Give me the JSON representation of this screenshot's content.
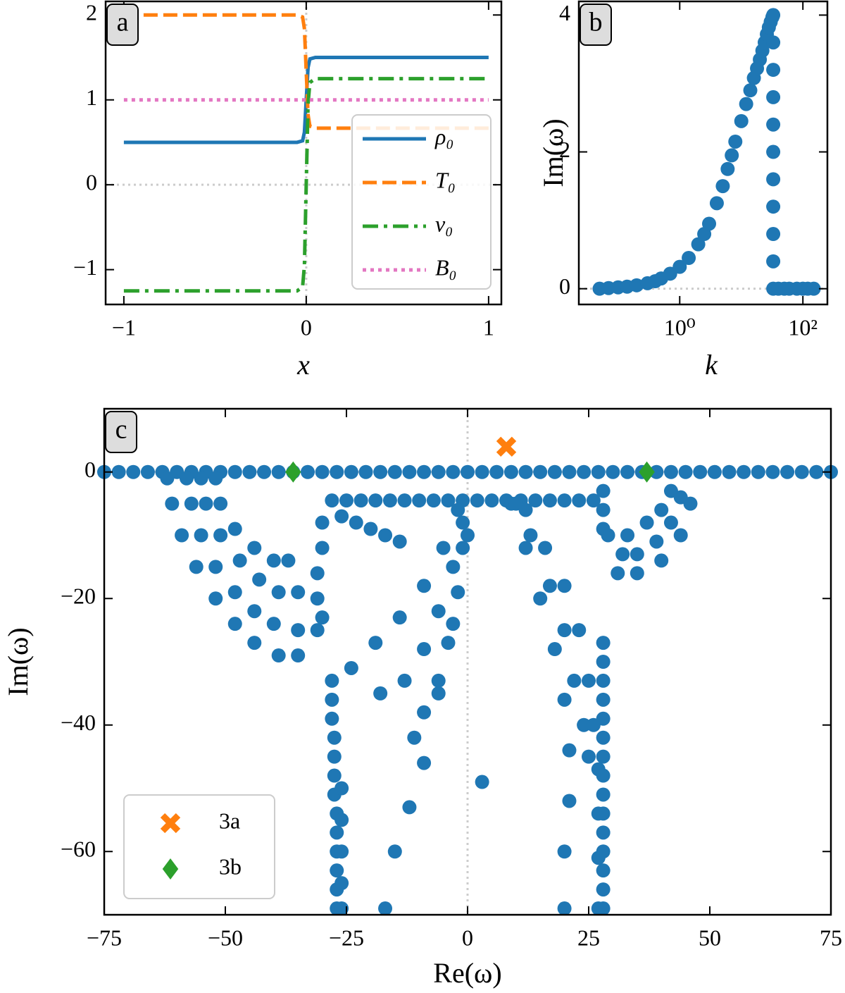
{
  "chart_data": [
    {
      "type": "line",
      "panel_label": "a",
      "xlabel": "x",
      "x": [
        -1,
        -0.1,
        -0.05,
        -0.02,
        -0.01,
        0,
        0.01,
        0.02,
        0.05,
        0.1,
        1
      ],
      "series": [
        {
          "name": "ρ₀",
          "color": "#1f77b4",
          "linestyle": "solid",
          "values": [
            0.5,
            0.5,
            0.5,
            0.518,
            0.619,
            1,
            1.381,
            1.482,
            1.5,
            1.5,
            1.5
          ]
        },
        {
          "name": "T₀",
          "color": "#ff7f0e",
          "linestyle": "dashed",
          "values": [
            2,
            2,
            2,
            1.976,
            1.841,
            1.333,
            0.825,
            0.69,
            0.667,
            0.667,
            0.667
          ]
        },
        {
          "name": "v₀",
          "color": "#2ca02c",
          "linestyle": "dashdot",
          "values": [
            -1.25,
            -1.25,
            -1.25,
            -1.205,
            -0.952,
            0,
            0.952,
            1.205,
            1.25,
            1.25,
            1.25
          ]
        },
        {
          "name": "B₀",
          "color": "#e377c2",
          "linestyle": "dotted",
          "values": [
            1,
            1,
            1,
            1,
            1,
            1,
            1,
            1,
            1,
            1,
            1
          ]
        }
      ],
      "xlim": [
        -1.1,
        1.07
      ],
      "ylim": [
        -1.41,
        2.16
      ],
      "xticks": [
        {
          "value": -1,
          "label": "−1"
        },
        0,
        1
      ],
      "yticks": [
        {
          "value": -1,
          "label": "−1"
        },
        0,
        1,
        2
      ],
      "zero_lines": [
        "x",
        "y"
      ],
      "legend": "lower right"
    },
    {
      "type": "scatter",
      "panel_label": "b",
      "xlabel": "k",
      "ylabel": "Im(ω)",
      "xlog": true,
      "series": [
        {
          "color": "#1f77b4",
          "marker": "o",
          "x": [
            0.05,
            0.07,
            0.1,
            0.14,
            0.2,
            0.3,
            0.4,
            0.5,
            0.7,
            1,
            1.4,
            2,
            2.5,
            3,
            4,
            5,
            6,
            7,
            8,
            10,
            12,
            14,
            16,
            18,
            20,
            22,
            24,
            26,
            28,
            30,
            32,
            33,
            33,
            33,
            33,
            33,
            33,
            33,
            33,
            33,
            33,
            33,
            40,
            50,
            60,
            80,
            100,
            120,
            150
          ],
          "y": [
            0,
            0.01,
            0.02,
            0.03,
            0.05,
            0.08,
            0.11,
            0.15,
            0.22,
            0.32,
            0.45,
            0.65,
            0.8,
            0.95,
            1.25,
            1.5,
            1.75,
            1.95,
            2.15,
            2.45,
            2.7,
            2.9,
            3.08,
            3.22,
            3.35,
            3.48,
            3.6,
            3.72,
            3.82,
            3.9,
            3.97,
            4.0,
            3.6,
            3.2,
            2.8,
            2.4,
            2.0,
            1.6,
            1.2,
            0.8,
            0.4,
            0,
            0,
            0,
            0,
            0,
            0,
            0,
            0
          ]
        }
      ],
      "xlim": [
        0.023,
        250
      ],
      "ylim": [
        -0.23,
        4.2
      ],
      "xticks": [
        {
          "value": 1,
          "label": "10⁰"
        },
        {
          "value": 100,
          "label": "10²"
        }
      ],
      "yticks": [
        0,
        2,
        4
      ],
      "zero_lines": [
        "y"
      ]
    },
    {
      "type": "scatter",
      "panel_label": "c",
      "xlabel": "Re(ω)",
      "ylabel": "Im(ω)",
      "series": [
        {
          "color": "#1f77b4",
          "marker": "o",
          "x": [
            -75,
            -72,
            -69,
            -66,
            -63,
            -60,
            -57,
            -54,
            -51,
            -48,
            -45,
            -42,
            -39,
            -36,
            -33,
            -30,
            -27,
            -24,
            -21,
            -18,
            -15,
            -12,
            -9,
            -6,
            -3,
            0,
            3,
            6,
            9,
            12,
            15,
            18,
            21,
            24,
            27,
            30,
            33,
            36,
            39,
            42,
            45,
            48,
            51,
            54,
            57,
            60,
            63,
            66,
            69,
            72,
            75,
            -28,
            -25,
            -22,
            -19,
            -16,
            -13,
            -10,
            -7,
            -4,
            -1,
            2,
            5,
            8,
            11,
            14,
            17,
            20,
            23,
            26,
            -62,
            -61,
            -59,
            -56,
            -52,
            -48,
            -44,
            -39,
            -35,
            -58,
            -57,
            -55,
            -52,
            -48,
            -44,
            -40,
            -35,
            -31,
            -55,
            -54,
            -51,
            -47,
            -43,
            -39,
            -35,
            -52,
            -51,
            -48,
            -44,
            -40,
            -37,
            -30,
            -30,
            -31,
            -31,
            -30,
            -2,
            -5,
            -9,
            -14,
            -19,
            -24,
            -1,
            -3,
            -6,
            -9,
            -13,
            -18,
            0,
            -2,
            -4,
            -6,
            -9,
            -11,
            -1,
            -3,
            -6,
            -9,
            -12,
            -15,
            -17,
            -26,
            -23,
            -20,
            -17,
            -14,
            -28,
            -28,
            -28,
            -27.5,
            -27.5,
            -27.5,
            -27.5,
            -27,
            -27,
            -27,
            -27,
            -27,
            -27,
            -26,
            -26,
            -26,
            -26,
            -26,
            9,
            12,
            15,
            18,
            20,
            21,
            21,
            20,
            20,
            10,
            13,
            17,
            20,
            22,
            24,
            25,
            12,
            16,
            20,
            23,
            25,
            26,
            27,
            27,
            27,
            27,
            28,
            28,
            28,
            28,
            28,
            28,
            28,
            28,
            28,
            28,
            28,
            28,
            28,
            28,
            28,
            3,
            46,
            44,
            40,
            35,
            31,
            44,
            42,
            39,
            35,
            32,
            42,
            40,
            37,
            33,
            29,
            28,
            28,
            28
          ],
          "y": [
            0,
            0,
            0,
            0,
            0,
            0,
            0,
            0,
            0,
            0,
            0,
            0,
            0,
            0,
            0,
            0,
            0,
            0,
            0,
            0,
            0,
            0,
            0,
            0,
            0,
            0,
            0,
            0,
            0,
            0,
            0,
            0,
            0,
            0,
            0,
            0,
            0,
            0,
            0,
            0,
            0,
            0,
            0,
            0,
            0,
            0,
            0,
            0,
            0,
            0,
            0,
            -4.5,
            -4.5,
            -4.5,
            -4.5,
            -4.5,
            -4.5,
            -4.5,
            -4.5,
            -4.5,
            -4.5,
            -4.5,
            -4.5,
            -4.5,
            -4.5,
            -4.5,
            -4.5,
            -4.5,
            -4.5,
            -4.5,
            -1,
            -5,
            -10,
            -15,
            -20,
            -24,
            -27,
            -29,
            -29,
            -1,
            -5,
            -10,
            -15,
            -19,
            -22,
            -24,
            -25,
            -25,
            -1,
            -5,
            -10,
            -14,
            -17,
            -19,
            -19,
            -1,
            -5,
            -9,
            -12,
            -14,
            -14,
            -8,
            -12,
            -16,
            -20,
            -23,
            -6,
            -12,
            -18,
            -23,
            -27,
            -31,
            -8,
            -15,
            -22,
            -28,
            -33,
            -35,
            -10,
            -19,
            -27,
            -33,
            -38,
            -42,
            -12,
            -24,
            -35,
            -46,
            -53,
            -60,
            -69,
            -7,
            -8,
            -9,
            -10,
            -11,
            -33,
            -36,
            -39,
            -42,
            -45,
            -48,
            -51,
            -54,
            -57,
            -60,
            -63,
            -66,
            -69,
            -50,
            -55,
            -60,
            -65,
            -69,
            -5,
            -12,
            -20,
            -28,
            -36,
            -44,
            -52,
            -60,
            -69,
            -5,
            -10,
            -18,
            -25,
            -33,
            -40,
            -45,
            -6,
            -12,
            -18,
            -25,
            -33,
            -40,
            -47,
            -54,
            -61,
            -69,
            -27,
            -30,
            -33,
            -36,
            -39,
            -42,
            -45,
            -48,
            -51,
            -54,
            -57,
            -60,
            -63,
            -66,
            -69,
            -49,
            -5,
            -10,
            -14,
            -16,
            -16,
            -4,
            -8,
            -11,
            -13,
            -13,
            -3,
            -6,
            -8,
            -10,
            -10,
            -3,
            -6,
            -9
          ]
        },
        {
          "name": "3a",
          "color": "#ff7f0e",
          "marker": "X",
          "x": [
            8
          ],
          "y": [
            4
          ]
        },
        {
          "name": "3b",
          "color": "#2ca02c",
          "marker": "D",
          "x": [
            -36,
            37
          ],
          "y": [
            0,
            0
          ]
        }
      ],
      "xlim": [
        -75,
        75
      ],
      "ylim": [
        -70,
        10
      ],
      "xticks": [
        {
          "value": -75,
          "label": "−75"
        },
        {
          "value": -50,
          "label": "−50"
        },
        {
          "value": -25,
          "label": "−25"
        },
        0,
        25,
        50,
        75
      ],
      "yticks": [
        {
          "value": -60,
          "label": "−60"
        },
        {
          "value": -40,
          "label": "−40"
        },
        {
          "value": -20,
          "label": "−20"
        },
        0
      ],
      "zero_lines": [
        "x",
        "y"
      ],
      "legend": "lower left"
    }
  ]
}
